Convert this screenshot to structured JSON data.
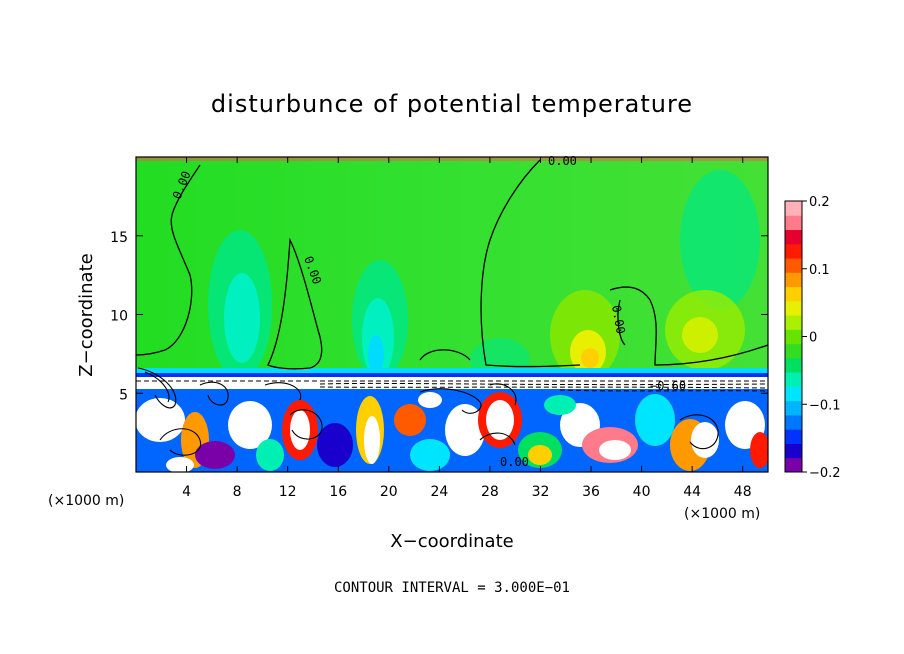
{
  "chart_data": {
    "type": "heatmap",
    "title": "disturbunce of potential temperature",
    "xlabel": "X−coordinate",
    "ylabel": "Z−coordinate",
    "x_unit": "(×1000 m)",
    "y_unit": "(×1000 m)",
    "xlim": [
      0,
      50
    ],
    "ylim": [
      0,
      20
    ],
    "x_ticks": [
      4,
      8,
      12,
      16,
      20,
      24,
      28,
      32,
      36,
      40,
      44,
      48
    ],
    "y_ticks": [
      5,
      10,
      15
    ],
    "colorbar": {
      "ticks": [
        -0.2,
        -0.1,
        0,
        0.1,
        0.2
      ],
      "tick_labels": [
        "−0.2",
        "−0.1",
        "0",
        "0.1",
        "0.2"
      ],
      "range": [
        -0.2,
        0.2
      ],
      "colors": [
        "#7a00a8",
        "#1a00cc",
        "#0033ff",
        "#0077ff",
        "#00b4ff",
        "#00e5ff",
        "#00f0b4",
        "#00e060",
        "#33dd22",
        "#66e400",
        "#aaf000",
        "#e6f000",
        "#ffd000",
        "#ff9900",
        "#ff5a00",
        "#ff1a00",
        "#e60030",
        "#ff7a8a",
        "#ffb0b8"
      ]
    },
    "contour_interval": "CONTOUR INTERVAL = 3.000E−01",
    "contour_labels": [
      "0.00",
      "0.00",
      "0.00",
      "0.00",
      "−0.60",
      "0.00"
    ]
  }
}
